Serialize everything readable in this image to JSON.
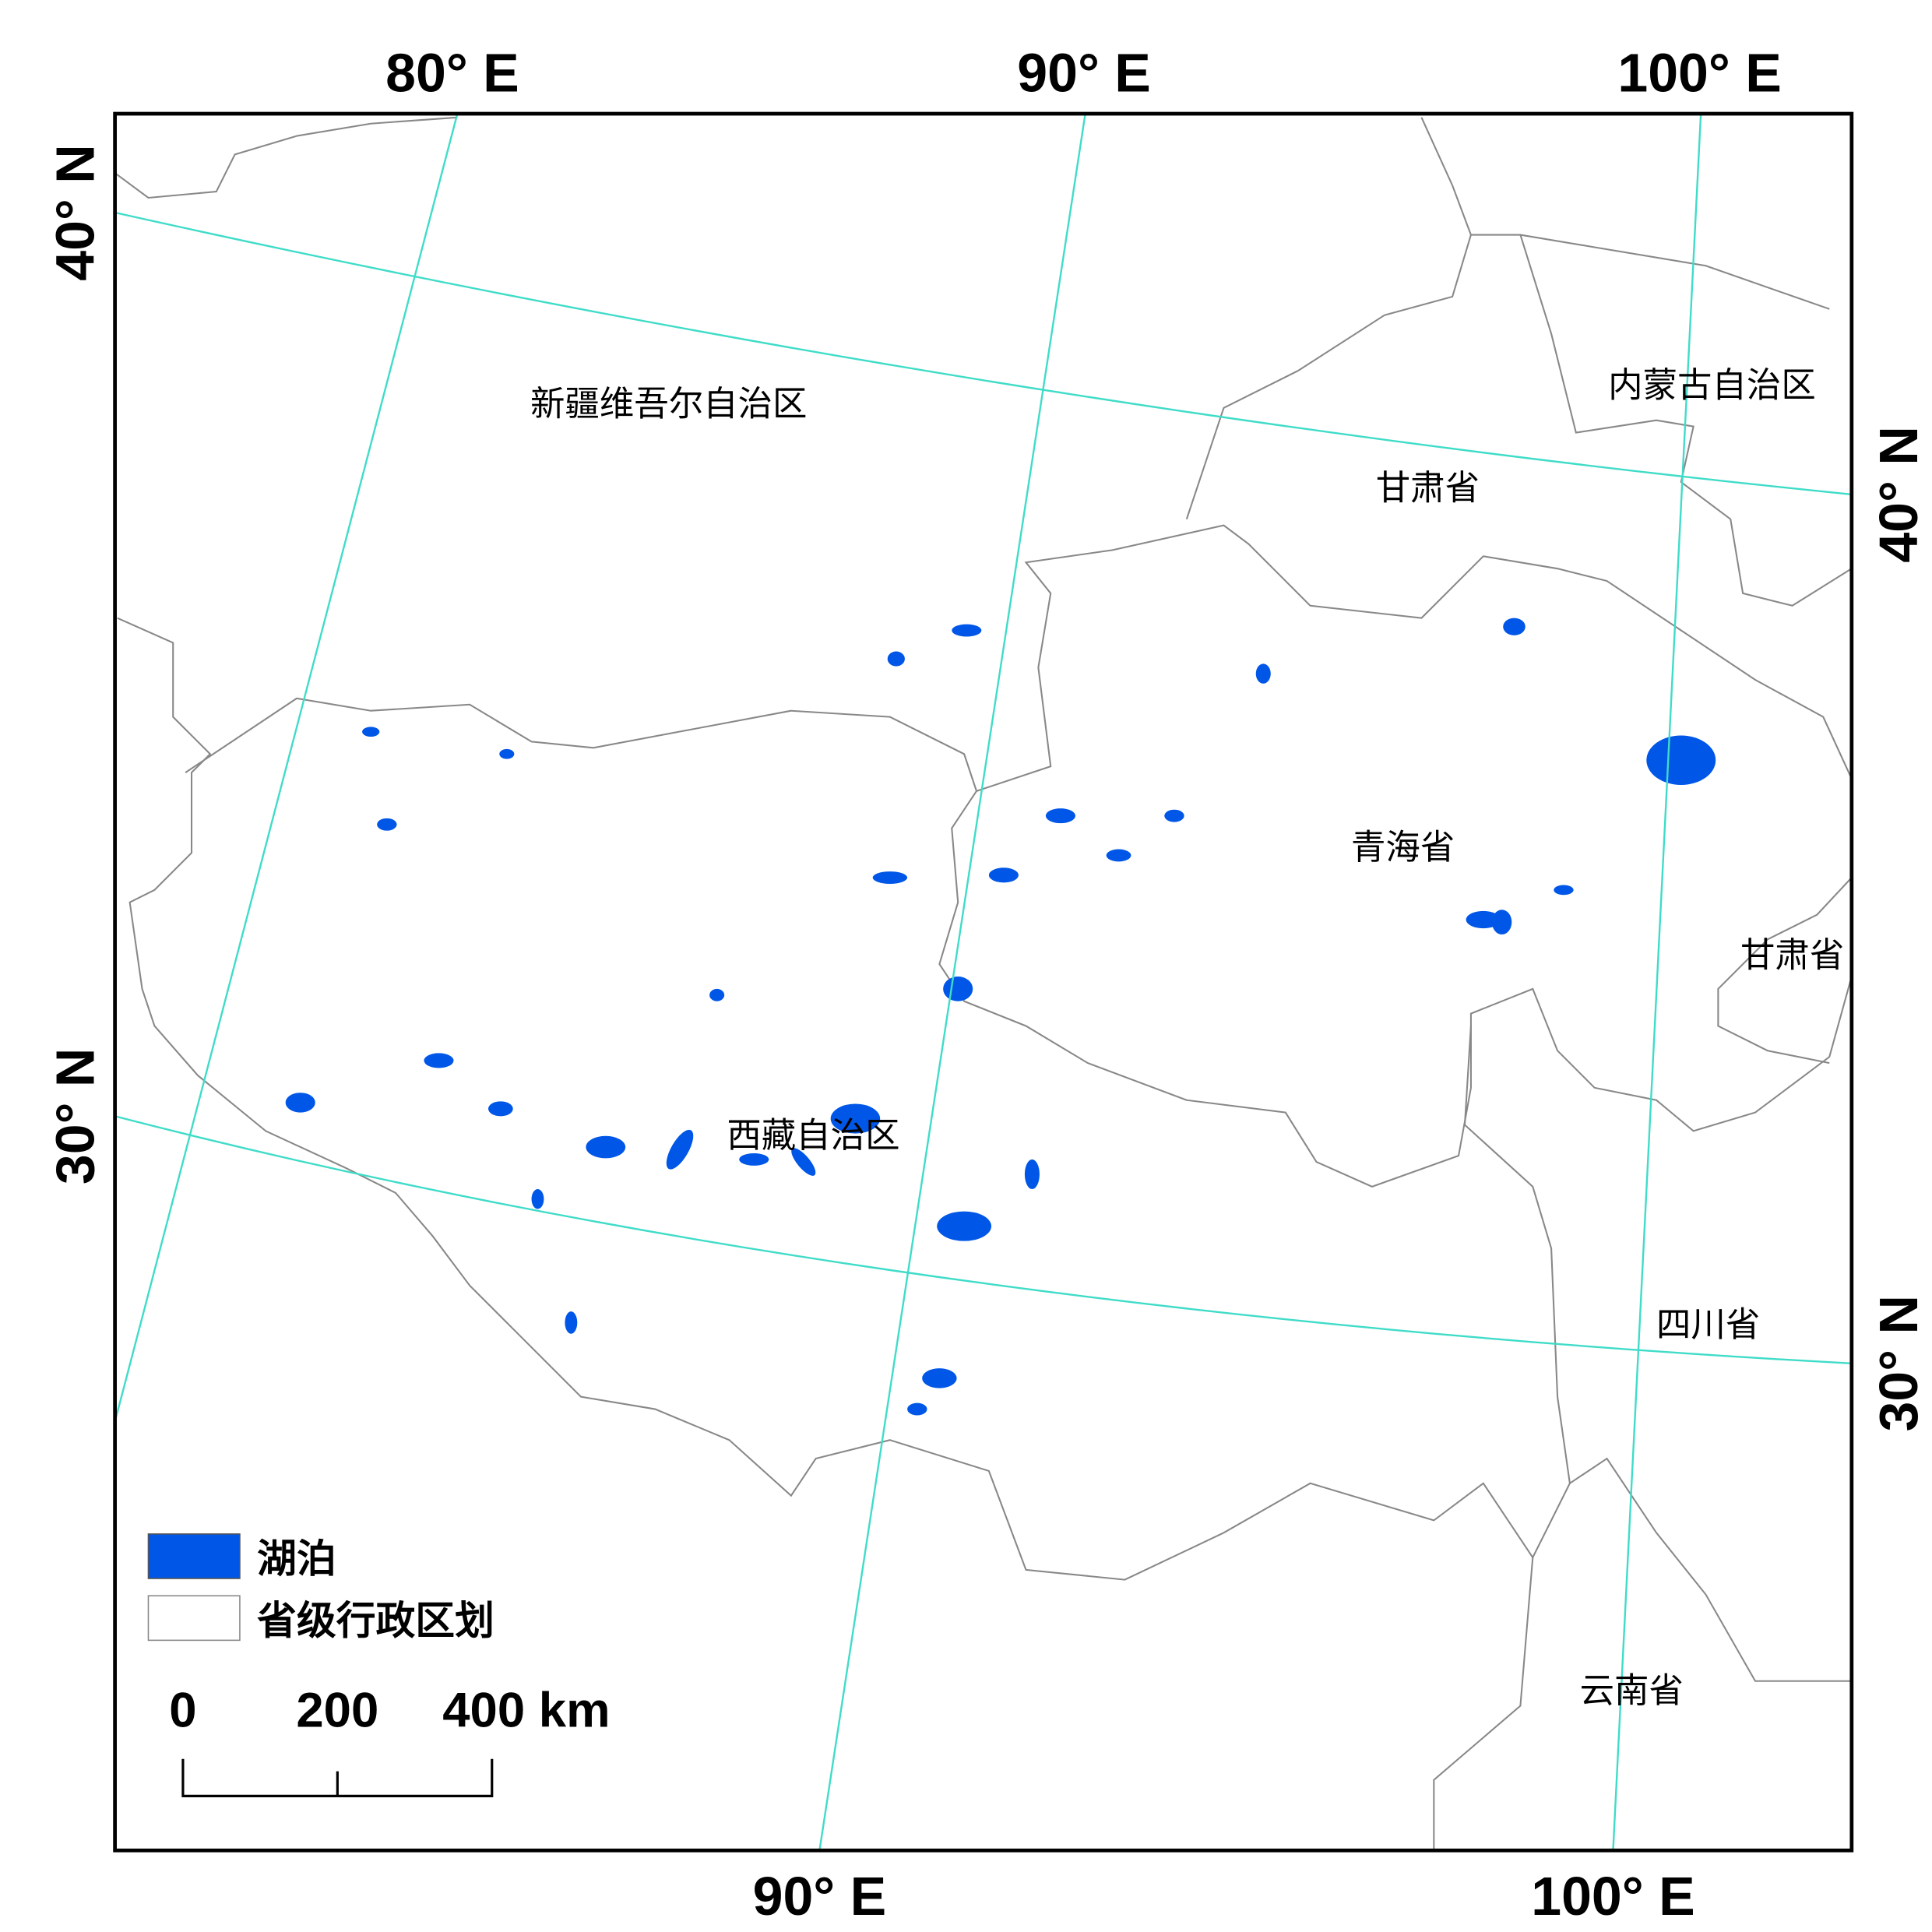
{
  "graticule_labels": {
    "top": [
      "80° E",
      "90° E",
      "100° E"
    ],
    "bottom": [
      "90° E",
      "100° E"
    ],
    "left": [
      "40° N",
      "30° N"
    ],
    "right": [
      "40° N",
      "30° N"
    ]
  },
  "regions": [
    "新疆维吾尔自治区",
    "内蒙古自治区",
    "甘肃省",
    "青海省",
    "甘肃省",
    "西藏自治区",
    "四川省",
    "云南省"
  ],
  "legend": {
    "items": [
      "湖泊",
      "省级行政区划"
    ]
  },
  "scale_bar": {
    "labels": [
      "0",
      "200",
      "400 km"
    ]
  }
}
